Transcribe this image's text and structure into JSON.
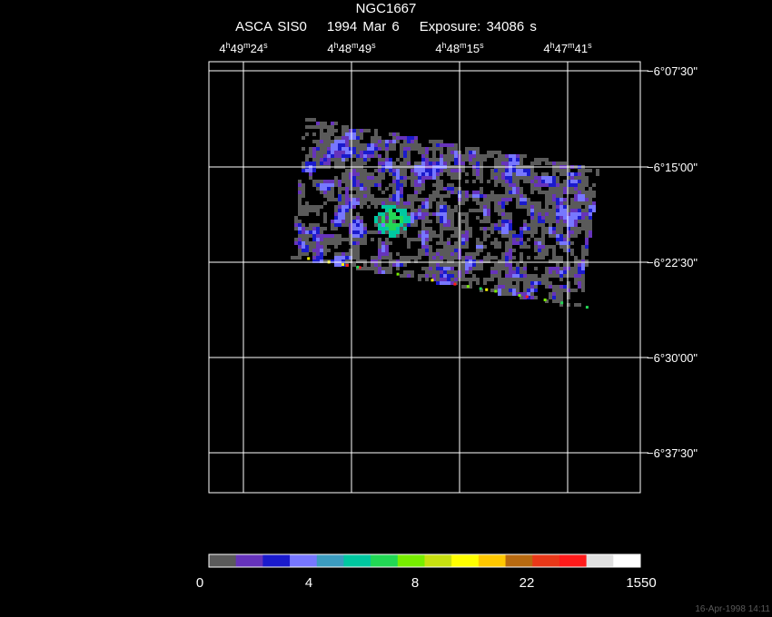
{
  "chart_data": {
    "type": "heatmap",
    "title": "NGC1667",
    "instrument": "ASCA SIS0",
    "date": "1994 Mar  6",
    "exposure": "Exposure: 34086 s",
    "ra_ticks": [
      {
        "h": "4",
        "m": "49",
        "s": "24"
      },
      {
        "h": "4",
        "m": "48",
        "s": "49"
      },
      {
        "h": "4",
        "m": "48",
        "s": "15"
      },
      {
        "h": "4",
        "m": "47",
        "s": "41"
      }
    ],
    "dec_ticks": [
      "−6°07'30\"",
      "−6°15'00\"",
      "−6°22'30\"",
      "−6°30'00\"",
      "−6°37'30\""
    ],
    "grid": true,
    "colorbar": {
      "colors": [
        "#5a5a5a",
        "#6633bb",
        "#1a1acc",
        "#7777ff",
        "#3c9cc0",
        "#00c8a0",
        "#22d855",
        "#77ee00",
        "#c8e010",
        "#ffff00",
        "#ffc800",
        "#b86a10",
        "#e83818",
        "#ff1a1a",
        "#e0e0e0",
        "#ffffff"
      ],
      "labels": [
        "0",
        "4",
        "8",
        "22",
        "1550"
      ]
    },
    "timestamp": "16-Apr-1998 14:11"
  }
}
